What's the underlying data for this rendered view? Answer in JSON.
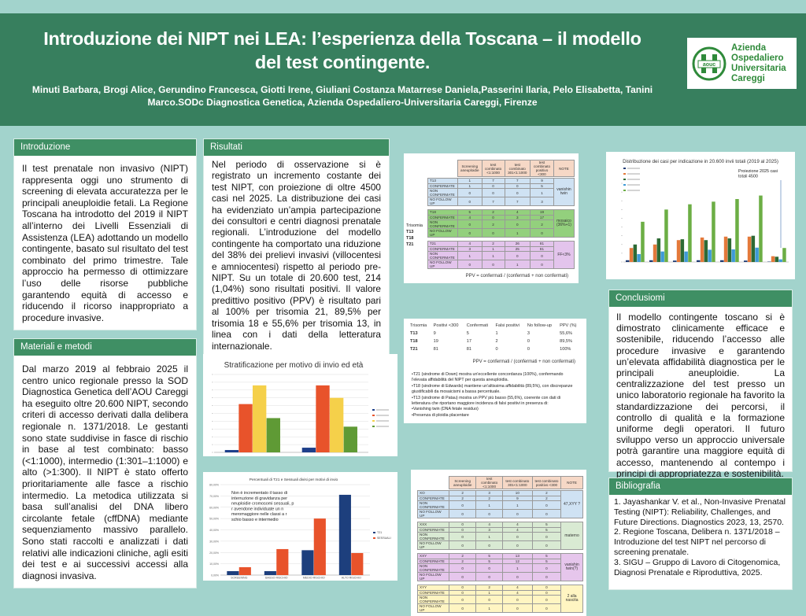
{
  "header": {
    "title": "Introduzione dei NIPT nei LEA: l’esperienza della Toscana – il modello del test contingente.",
    "authors": "Minuti Barbara,  Brogi Alice,   Gerundino Francesca,  Giotti Irene, Giuliani Costanza  Matarrese Daniela,Passerini Ilaria, Pelo Elisabetta, Tanini Marco.SODc Diagnostica Genetica, Azienda Ospedaliero-Universitaria Careggi, Firenze"
  },
  "logo": {
    "mark": "aouc",
    "text": [
      "Azienda",
      "Ospedaliero",
      "Universitaria",
      "Careggi"
    ],
    "color": "#2f8a3a"
  },
  "intro": {
    "title": "Introduzione",
    "text": "Il test prenatale non invasivo (NIPT) rappresenta oggi uno strumento di screening di elevata accuratezza per le principali aneuploidie fetali. La Regione Toscana ha introdotto del 2019 il NIPT all’interno dei Livelli Essenziali di Assistenza (LEA) adottando un modello contingente, basato sul risultato del test combinato del primo trimestre. Tale approccio ha permesso di ottimizzare l’uso delle risorse pubbliche garantendo equità di accesso e riducendo il ricorso inappropriato a procedure invasive."
  },
  "methods": {
    "title": "Materiali e metodi",
    "text": "Dal marzo 2019 al febbraio 2025 il centro unico regionale presso la SOD Diagnostica Genetica dell’AOU Careggi ha eseguito oltre 20.600 NIPT, secondo criteri di accesso derivati dalla delibera regionale n. 1371/2018. Le gestanti sono state suddivise in fasce di rischio in base al test combinato: basso (<1:1000), intermedio (1:301–1:1000) e alto (>1:300). Il NIPT è stato offerto prioritariamente alle fasce a rischio intermedio. La metodica utilizzata si basa sull’analisi del DNA libero circolante fetale (cffDNA) mediante sequenziamento massivo parallelo. Sono stati raccolti e analizzati i dati relativi alle indicazioni cliniche, agli esiti dei test e ai successivi accessi alla diagnosi invasiva."
  },
  "results": {
    "title": "Risultati",
    "text": "Nel periodo di osservazione si è registrato un incremento costante dei test NIPT, con proiezione di oltre 4500 casi nel 2025. La distribuzione dei casi ha evidenziato un’ampia partecipazione dei consultori e centri diagnosi prenatale regionali. L’introduzione del modello contingente ha comportato una riduzione del 38% dei prelievi invasivi (villocentesi e amniocentesi) rispetto al periodo pre-NIPT. Su un totale di 20.600 test, 214 (1,04%) sono risultati positivi. Il valore predittivo positivo (PPV) è risultato pari al 100% per trisomia 21, 89,5% per trisomia 18 e 55,6% per trisomia 13, in linea con i dati della letteratura internazionale."
  },
  "conclusions": {
    "title": "Conclusiomi",
    "text": "Il modello contingente toscano si è dimostrato clinicamente efficace e sostenibile, riducendo l’accesso alle procedure invasive e garantendo un’elevata affidabilità diagnostica per le principali aneuploidie. La centralizzazione del test presso un unico laboratorio regionale ha favorito la standardizzazione dei percorsi, il controllo di qualità e la formazione uniforme degli operatori. Il futuro sviluppo verso un approccio universale potrà garantire una maggiore equità di accesso, mantenendo al contempo i principi di appropriatezza e sostenibilità."
  },
  "biblio": {
    "title": "Bibliografia",
    "items": [
      "1. Jayashankar V. et al., Non-Invasive Prenatal Testing (NIPT): Reliability, Challenges, and Future Directions. Diagnostics 2023, 13, 2570.",
      "2. Regione Toscana, Delibera n. 1371/2018 – Introduzione del test NIPT nel percorso di screening prenatale.",
      "3. SIGU – Gruppo di Lavoro di Citogenomica, Diagnosi Prenatale e Riproduttiva, 2025."
    ]
  },
  "table_headers": [
    "",
    "Screening aneuploidie",
    "test combinato <1:1000",
    "test combinato 301<1:1000",
    "test combinato positivo <300",
    "NOTE"
  ],
  "trisomy_table": {
    "groups": [
      {
        "color": "#cfe2f3",
        "rows": [
          [
            "T13",
            "1",
            "7",
            "7",
            "9",
            ""
          ],
          [
            "CONFERMATE",
            "1",
            "0",
            "0",
            "5",
            ""
          ],
          [
            "NON CONFERMATE",
            "0",
            "0",
            "0",
            "1",
            "vanishin twin"
          ],
          [
            "NO FOLLOW UP",
            "0",
            "7",
            "7",
            "3",
            ""
          ]
        ]
      },
      {
        "color": "#93d07d",
        "rows": [
          [
            "T18",
            "5",
            "2",
            "4",
            "19",
            ""
          ],
          [
            "CONFERMATE",
            "4",
            "0",
            "3",
            "17",
            ""
          ],
          [
            "NON CONFERMATE",
            "0",
            "2",
            "0",
            "2",
            "mosaico (36%+1)"
          ],
          [
            "NO FOLLOW UP",
            "0",
            "0",
            "1",
            "0",
            ""
          ]
        ]
      },
      {
        "color": "#e3c4ec",
        "rows": [
          [
            "T21",
            "4",
            "2",
            "26",
            "81",
            ""
          ],
          [
            "CONFERMATE",
            "3",
            "1",
            "25",
            "81",
            ""
          ],
          [
            "NON CONFERMATE",
            "1",
            "1",
            "0",
            "0",
            "FF<3%"
          ],
          [
            "NO FOLLOW UP",
            "0",
            "0",
            "1",
            "0",
            ""
          ]
        ]
      }
    ],
    "side_labels": [
      "Trisomia",
      "T13",
      "T18",
      "T21"
    ],
    "footer": "PPV = confermati / (confermati + non confermati)"
  },
  "ppv_table": {
    "headers": [
      "Trisomia",
      "Positivi <300",
      "Confermati",
      "Falsi positivi",
      "No follow-up",
      "PPV (%)"
    ],
    "rows": [
      [
        "T13",
        "9",
        "5",
        "1",
        "3",
        "55,6%"
      ],
      [
        "T18",
        "19",
        "17",
        "2",
        "0",
        "89,5%"
      ],
      [
        "T21",
        "81",
        "81",
        "0",
        "0",
        "100%"
      ]
    ],
    "footer": "PPV = confermati / (confermati + non confermati)",
    "bullets": [
      "•T21 (sindrome di Down) mostra un'eccellente concordanza (100%), confermando l'elevata affidabilità del NIPT per questa aneuploidia.",
      "•T18 (sindrome di Edwards) mantiene un'altissima affidabilità (89,5%), con discrepanze giustificabili da mosaicismi a bassa percentuale.",
      "•T13 (sindrome di Patau) mostra un PPV più basso (55,6%), coerente con dati di letteratura che riportano maggiore incidenza di falsi positivi in presenza di:",
      "•Vanishing twin (DNA fetale residuo)",
      "•Presenza di ploidia placentare"
    ]
  },
  "sex_table": {
    "groups": [
      {
        "color": "#cfe2f3",
        "rows": [
          [
            "XO",
            "2",
            "3",
            "10",
            "2",
            ""
          ],
          [
            "CONFERMATE",
            "2",
            "2",
            "9",
            "2",
            "47,XYY ?"
          ],
          [
            "NON CONFERMATE",
            "0",
            "1",
            "1",
            "0",
            ""
          ],
          [
            "NO FOLLOW UP",
            "0",
            "0",
            "0",
            "0",
            ""
          ]
        ]
      },
      {
        "color": "#d9ead3",
        "rows": [
          [
            "XXX",
            "0",
            "4",
            "4",
            "5",
            ""
          ],
          [
            "CONFERMATE",
            "0",
            "3",
            "4",
            "5",
            ""
          ],
          [
            "NON CONFERMATE",
            "0",
            "1",
            "0",
            "0",
            "materno"
          ],
          [
            "NO FOLLOW UP",
            "0",
            "0",
            "0",
            "0",
            ""
          ]
        ]
      },
      {
        "color": "#e6c6ec",
        "rows": [
          [
            "XXY",
            "2",
            "5",
            "13",
            "5",
            ""
          ],
          [
            "CONFERMATE",
            "2",
            "5",
            "12",
            "5",
            ""
          ],
          [
            "NON CONFERMATE",
            "0",
            "0",
            "1",
            "0",
            "vanishin twin(?)"
          ],
          [
            "NO FOLLOW UP",
            "0",
            "0",
            "0",
            "0",
            ""
          ]
        ]
      },
      {
        "color": "#fff5c2",
        "rows": [
          [
            "XYY",
            "0",
            "2",
            "4",
            "0",
            ""
          ],
          [
            "CONFERMATE",
            "0",
            "1",
            "4",
            "0",
            "2 alla nascita"
          ],
          [
            "NON CONFERMATE",
            "0",
            "0",
            "0",
            "0",
            ""
          ],
          [
            "NO FOLLOW UP",
            "0",
            "1",
            "0",
            "0",
            ""
          ]
        ]
      }
    ]
  },
  "chart_data": [
    {
      "type": "bar",
      "title": "Distribuzione dei casi per indicazione in 20.600 invii totali (2019 al 2025)",
      "annotation": "Proiezione 2025 casi totali 4500",
      "ylim": [
        0,
        4500
      ],
      "grid": false,
      "legend": "top-left",
      "colors": [
        "#1f3b73",
        "#e4793a",
        "#2d6a34",
        "#3e9ad6",
        "#6cae45"
      ],
      "series": [
        {
          "values": [
            100,
            100,
            80,
            100,
            100,
            80,
            20
          ]
        },
        {
          "values": [
            800,
            1000,
            1250,
            1400,
            1450,
            1450,
            330
          ]
        },
        {
          "values": [
            1000,
            1350,
            1300,
            1250,
            1350,
            1500,
            300
          ]
        },
        {
          "values": [
            450,
            600,
            600,
            700,
            720,
            820,
            150
          ]
        },
        {
          "values": [
            2300,
            3000,
            3300,
            3450,
            3600,
            3800,
            800
          ]
        }
      ]
    },
    {
      "type": "bar",
      "title": "Stratificazione per motivo di invio ed età",
      "ylim": [
        0,
        50
      ],
      "grid": true,
      "legend": "right",
      "colors": [
        "#1d3f8a",
        "#e8532b",
        "#f5d04a",
        "#5f9a35"
      ],
      "series": [
        {
          "values": [
            1.5,
            3
          ]
        },
        {
          "values": [
            31,
            43
          ]
        },
        {
          "values": [
            43,
            35
          ]
        },
        {
          "values": [
            22,
            16.5
          ]
        }
      ]
    },
    {
      "type": "bar",
      "title": "Percentuali di T21 e Sessuali divisi per motivi di invio",
      "ylim": [
        0,
        80
      ],
      "grid": true,
      "legend": "right",
      "categories": [
        "SCREENING",
        "BASSO RISCHIO",
        "MEDIO RISCHIO",
        "ALTO RISCHIO"
      ],
      "yticks": [
        "0,00%",
        "10,00%",
        "20,00%",
        "30,00%",
        "40,00%",
        "50,00%",
        "60,00%",
        "70,00%",
        "80,00%"
      ],
      "annotation": "Non è incrementato il tasso di interruzione di gravidanza per aneuploidie cromosomi sessuali, pur avendone individuate un numeromaggiore nelle classi a rischio basso e intermedio",
      "colors": [
        "#1d3f7d",
        "#e8532b"
      ],
      "series": [
        {
          "name": "T21",
          "values": [
            3.5,
            3.5,
            22,
            71
          ]
        },
        {
          "name": "SESSUALI",
          "values": [
            7,
            23,
            50,
            19.5
          ]
        }
      ]
    }
  ]
}
